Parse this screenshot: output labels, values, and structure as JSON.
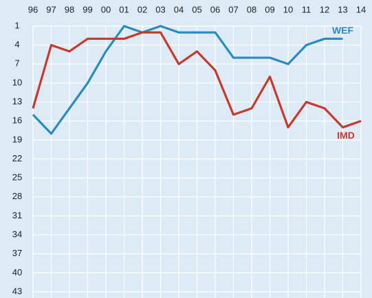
{
  "chart_data": {
    "type": "line",
    "categories": [
      "96",
      "97",
      "98",
      "99",
      "00",
      "01",
      "02",
      "03",
      "04",
      "05",
      "06",
      "07",
      "08",
      "09",
      "10",
      "11",
      "12",
      "13",
      "14"
    ],
    "series": [
      {
        "name": "WEF",
        "color": "#2a8bbf",
        "values": [
          15,
          18,
          14,
          10,
          5,
          1,
          2,
          1,
          2,
          2,
          2,
          6,
          6,
          6,
          7,
          4,
          3,
          3,
          null
        ]
      },
      {
        "name": "IMD",
        "color": "#c9392b",
        "values": [
          14,
          4,
          5,
          3,
          3,
          3,
          2,
          2,
          7,
          5,
          8,
          15,
          14,
          9,
          17,
          13,
          14,
          17,
          16
        ]
      }
    ],
    "ylim": [
      1,
      43
    ],
    "yticks": [
      1,
      4,
      7,
      10,
      13,
      16,
      19,
      22,
      25,
      28,
      31,
      34,
      37,
      40,
      43
    ],
    "y_inverted": true,
    "grid": true
  }
}
